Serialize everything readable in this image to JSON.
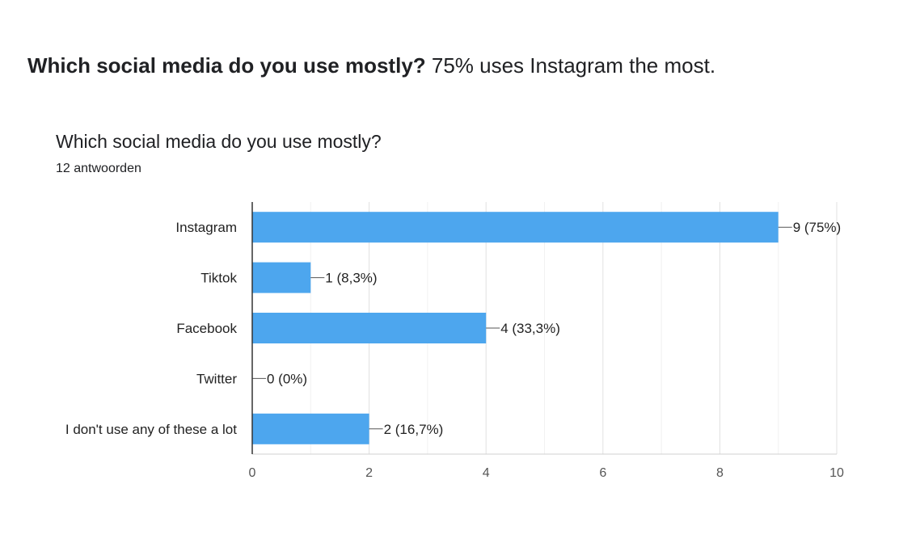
{
  "headline": {
    "question": "Which social media do you use mostly?",
    "answer": " 75% uses Instagram the most."
  },
  "card": {
    "title": "Which social media do you use mostly?",
    "responses": "12 antwoorden"
  },
  "chart_data": {
    "type": "bar",
    "orientation": "horizontal",
    "categories": [
      "Instagram",
      "Tiktok",
      "Facebook",
      "Twitter",
      "I don't use any of these a lot"
    ],
    "values": [
      9,
      1,
      4,
      0,
      2
    ],
    "data_labels": [
      "9 (75%)",
      "1 (8,3%)",
      "4 (33,3%)",
      "0 (0%)",
      "2 (16,7%)"
    ],
    "xlim": [
      0,
      10
    ],
    "xticks": [
      0,
      2,
      4,
      6,
      8,
      10
    ],
    "grid": true,
    "bar_color": "#4da6ee"
  }
}
